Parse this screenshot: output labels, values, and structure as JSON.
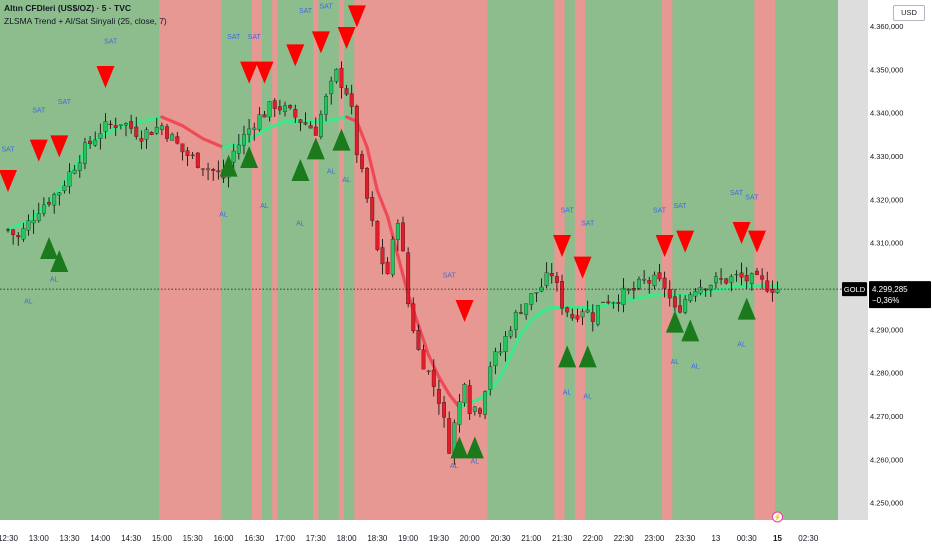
{
  "header": {
    "title": "Altın CFDleri (US$/OZ) · 5 · TVC",
    "indicator": "ZLSMA Trend + Al/Sat Sinyali (25, close, 7)"
  },
  "currency_button": "USD",
  "price_tag": {
    "symbol": "GOLD",
    "price": "4.299,285",
    "change": "−0,36%"
  },
  "date_marker": "15",
  "chart_data": {
    "type": "candlestick",
    "instrument": "Altın CFDleri (US$/OZ)",
    "interval": "5",
    "ylim": [
      4246,
      4366
    ],
    "y_ticks": [
      4250,
      4260,
      4270,
      4280,
      4290,
      4300,
      4310,
      4320,
      4330,
      4340,
      4350,
      4360
    ],
    "y_tick_labels": [
      "4.250,000",
      "4.260,000",
      "4.270,000",
      "4.280,000",
      "4.290,000",
      "4.300,000",
      "4.310,000",
      "4.320,000",
      "4.330,000",
      "4.340,000",
      "4.350,000",
      "4.360,000"
    ],
    "x_tick_labels": [
      "12:30",
      "13:00",
      "13:30",
      "14:00",
      "14:30",
      "15:00",
      "15:30",
      "16:00",
      "16:30",
      "17:00",
      "17:30",
      "18:00",
      "18:30",
      "19:00",
      "19:30",
      "20:00",
      "20:30",
      "21:00",
      "21:30",
      "22:00",
      "22:30",
      "23:00",
      "23:30",
      "13",
      "00:30",
      "15",
      "02:30"
    ],
    "x_tick_bars": [
      0,
      6,
      12,
      18,
      24,
      30,
      36,
      42,
      48,
      54,
      60,
      66,
      72,
      78,
      84,
      90,
      96,
      102,
      108,
      114,
      120,
      126,
      132,
      138,
      144,
      150,
      156
    ],
    "last_bar": 150,
    "current_price": 4299.285,
    "bearish_zones": [
      [
        30,
        42
      ],
      [
        48,
        50
      ],
      [
        52,
        53
      ],
      [
        60,
        61
      ],
      [
        65,
        66
      ],
      [
        68,
        94
      ],
      [
        107,
        109
      ],
      [
        111,
        113
      ],
      [
        128,
        130
      ],
      [
        146,
        150
      ]
    ],
    "close_keys": [
      [
        0,
        4313
      ],
      [
        2,
        4311
      ],
      [
        6,
        4318
      ],
      [
        10,
        4322
      ],
      [
        14,
        4330
      ],
      [
        18,
        4336
      ],
      [
        22,
        4338
      ],
      [
        26,
        4335
      ],
      [
        30,
        4337
      ],
      [
        34,
        4331
      ],
      [
        38,
        4328
      ],
      [
        42,
        4325
      ],
      [
        44,
        4331
      ],
      [
        48,
        4338
      ],
      [
        52,
        4342
      ],
      [
        56,
        4339
      ],
      [
        60,
        4336
      ],
      [
        62,
        4343
      ],
      [
        64,
        4349
      ],
      [
        66,
        4345
      ],
      [
        67,
        4340
      ],
      [
        68,
        4331
      ],
      [
        70,
        4320
      ],
      [
        72,
        4308
      ],
      [
        74,
        4303
      ],
      [
        76,
        4316
      ],
      [
        77,
        4307
      ],
      [
        78,
        4296
      ],
      [
        80,
        4285
      ],
      [
        82,
        4280
      ],
      [
        84,
        4274
      ],
      [
        86,
        4263
      ],
      [
        88,
        4273
      ],
      [
        89,
        4279
      ],
      [
        90,
        4272
      ],
      [
        92,
        4272
      ],
      [
        94,
        4282
      ],
      [
        96,
        4285
      ],
      [
        98,
        4291
      ],
      [
        100,
        4295
      ],
      [
        104,
        4300
      ],
      [
        106,
        4303
      ],
      [
        108,
        4296
      ],
      [
        110,
        4293
      ],
      [
        112,
        4295
      ],
      [
        114,
        4293
      ],
      [
        116,
        4297
      ],
      [
        118,
        4297
      ],
      [
        120,
        4298
      ],
      [
        122,
        4299
      ],
      [
        124,
        4301
      ],
      [
        126,
        4301
      ],
      [
        128,
        4300
      ],
      [
        130,
        4294
      ],
      [
        132,
        4297
      ],
      [
        134,
        4300
      ],
      [
        138,
        4301
      ],
      [
        142,
        4302
      ],
      [
        146,
        4301
      ],
      [
        150,
        4299.3
      ]
    ],
    "zlsma_keys": [
      [
        0,
        4313
      ],
      [
        4,
        4315
      ],
      [
        10,
        4322
      ],
      [
        16,
        4333
      ],
      [
        22,
        4337
      ],
      [
        26,
        4338
      ],
      [
        30,
        4339
      ],
      [
        34,
        4337
      ],
      [
        38,
        4334
      ],
      [
        42,
        4332
      ],
      [
        46,
        4333
      ],
      [
        50,
        4336
      ],
      [
        54,
        4338
      ],
      [
        58,
        4338
      ],
      [
        62,
        4338
      ],
      [
        66,
        4339
      ],
      [
        68,
        4338
      ],
      [
        70,
        4332
      ],
      [
        72,
        4322
      ],
      [
        74,
        4316
      ],
      [
        76,
        4307
      ],
      [
        78,
        4298
      ],
      [
        80,
        4291
      ],
      [
        82,
        4284
      ],
      [
        84,
        4279
      ],
      [
        86,
        4275
      ],
      [
        88,
        4272
      ],
      [
        90,
        4273
      ],
      [
        92,
        4274
      ],
      [
        94,
        4276
      ],
      [
        96,
        4279
      ],
      [
        98,
        4284
      ],
      [
        100,
        4289
      ],
      [
        102,
        4292
      ],
      [
        104,
        4294
      ],
      [
        106,
        4295
      ],
      [
        108,
        4295
      ],
      [
        110,
        4295
      ],
      [
        112,
        4295
      ],
      [
        114,
        4295
      ],
      [
        118,
        4296
      ],
      [
        122,
        4297
      ],
      [
        126,
        4298
      ],
      [
        130,
        4298
      ],
      [
        134,
        4298
      ],
      [
        138,
        4299
      ],
      [
        142,
        4300
      ],
      [
        146,
        4300
      ],
      [
        150,
        4300
      ]
    ],
    "sell_signals": [
      [
        0,
        4324
      ],
      [
        6,
        4331
      ],
      [
        10,
        4332
      ],
      [
        19,
        4348
      ],
      [
        47,
        4349
      ],
      [
        50,
        4349
      ],
      [
        56,
        4353
      ],
      [
        61,
        4356
      ],
      [
        66,
        4357
      ],
      [
        68,
        4362
      ],
      [
        89,
        4294
      ],
      [
        108,
        4309
      ],
      [
        112,
        4304
      ],
      [
        128,
        4309
      ],
      [
        132,
        4310
      ],
      [
        143,
        4312
      ],
      [
        146,
        4310
      ]
    ],
    "buy_signals": [
      [
        8,
        4309
      ],
      [
        10,
        4306
      ],
      [
        43,
        4328
      ],
      [
        47,
        4330
      ],
      [
        57,
        4327
      ],
      [
        60,
        4332
      ],
      [
        65,
        4334
      ],
      [
        88,
        4263
      ],
      [
        91,
        4263
      ],
      [
        109,
        4284
      ],
      [
        113,
        4284
      ],
      [
        130,
        4292
      ],
      [
        133,
        4290
      ],
      [
        144,
        4295
      ]
    ],
    "sat_labels": [
      [
        20,
        4356
      ],
      [
        0,
        4331
      ],
      [
        6,
        4340
      ],
      [
        11,
        4342
      ],
      [
        44,
        4357
      ],
      [
        48,
        4357
      ],
      [
        58,
        4363
      ],
      [
        62,
        4364
      ],
      [
        86,
        4302
      ],
      [
        109,
        4317
      ],
      [
        113,
        4314
      ],
      [
        127,
        4317
      ],
      [
        131,
        4318
      ],
      [
        142,
        4321
      ],
      [
        145,
        4320
      ]
    ],
    "al_labels": [
      [
        9,
        4301
      ],
      [
        4,
        4296
      ],
      [
        42,
        4316
      ],
      [
        50,
        4318
      ],
      [
        57,
        4314
      ],
      [
        63,
        4326
      ],
      [
        66,
        4324
      ],
      [
        87,
        4258
      ],
      [
        91,
        4259
      ],
      [
        109,
        4275
      ],
      [
        113,
        4274
      ],
      [
        130,
        4282
      ],
      [
        134,
        4281
      ],
      [
        143,
        4286
      ]
    ]
  },
  "colors": {
    "bull_zone": "#8dbd8d",
    "bear_zone": "#e89893",
    "bull_candle": "#22c55e",
    "bear_candle": "#e11d2a",
    "wick": "#000000",
    "zlsma_bull": "#3ee88a",
    "zlsma_bear": "#ef4a58",
    "sell_triangle": "#ff0000",
    "buy_triangle": "#1b7a1b",
    "signal_text": "#3d6ae0",
    "axis_text": "#131722",
    "axis_bg": "#ffffff",
    "empty_area": "#dddddd"
  }
}
